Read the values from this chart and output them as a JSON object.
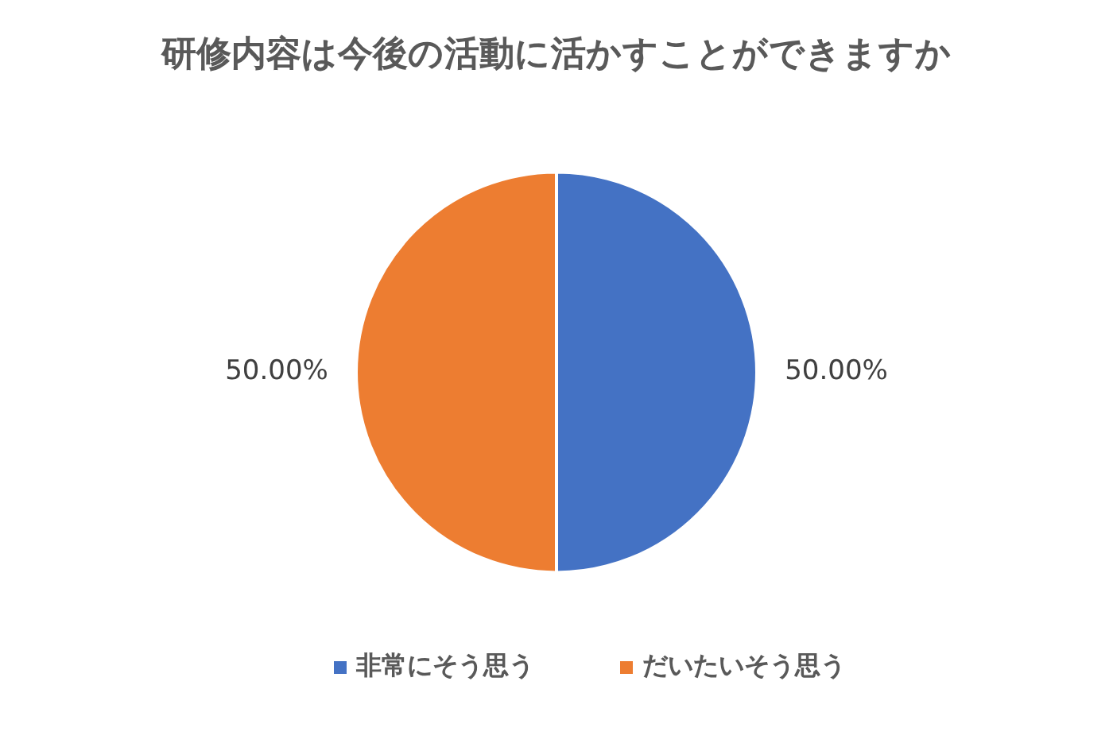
{
  "chart_data": {
    "type": "pie",
    "title": "研修内容は今後の活動に活かすことができますか",
    "categories": [
      "非常にそう思う",
      "だいたいそう思う"
    ],
    "values": [
      50,
      50
    ],
    "colors": [
      "#4472c4",
      "#ed7d31"
    ],
    "value_labels": [
      "50.00%",
      "50.00%"
    ],
    "legend": "bottom"
  }
}
